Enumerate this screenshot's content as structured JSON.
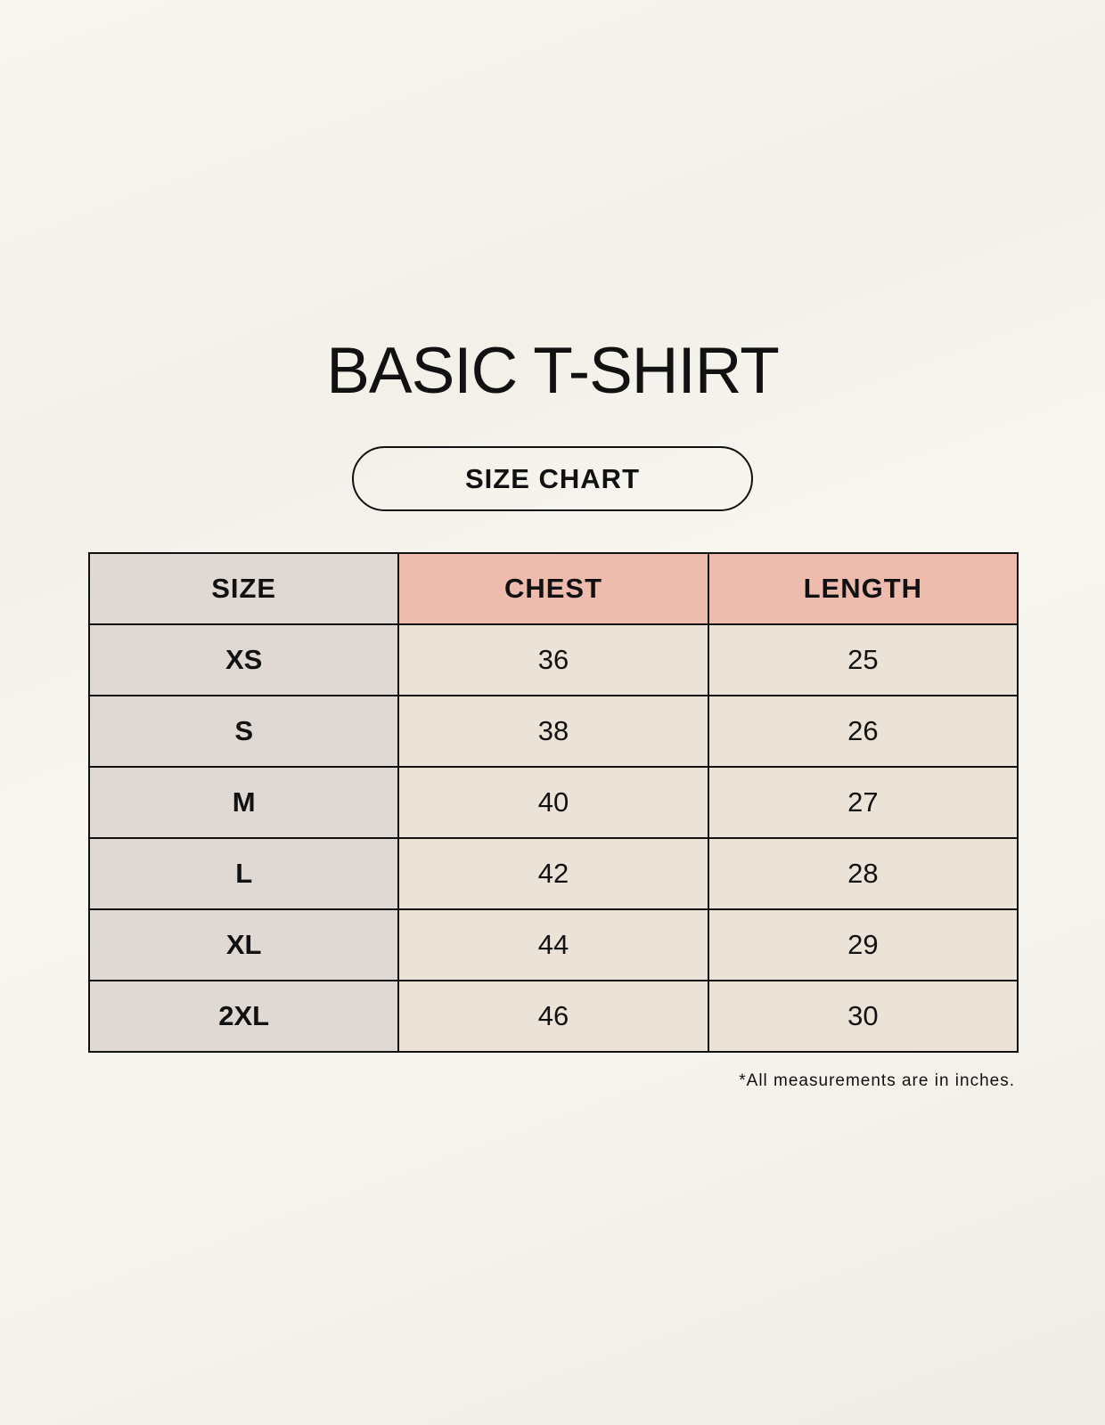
{
  "title": "BASIC T-SHIRT",
  "subtitle": "SIZE CHART",
  "colors": {
    "size_column": "#e0d8d2",
    "header_accent": "#eebcae",
    "data_cells": "#ebe3d8",
    "background": "#f8f5ef"
  },
  "table": {
    "headers": [
      "SIZE",
      "CHEST",
      "LENGTH"
    ],
    "rows": [
      [
        "XS",
        "36",
        "25"
      ],
      [
        "S",
        "38",
        "26"
      ],
      [
        "M",
        "40",
        "27"
      ],
      [
        "L",
        "42",
        "28"
      ],
      [
        "XL",
        "44",
        "29"
      ],
      [
        "2XL",
        "46",
        "30"
      ]
    ]
  },
  "footnote": "*All measurements are in inches."
}
